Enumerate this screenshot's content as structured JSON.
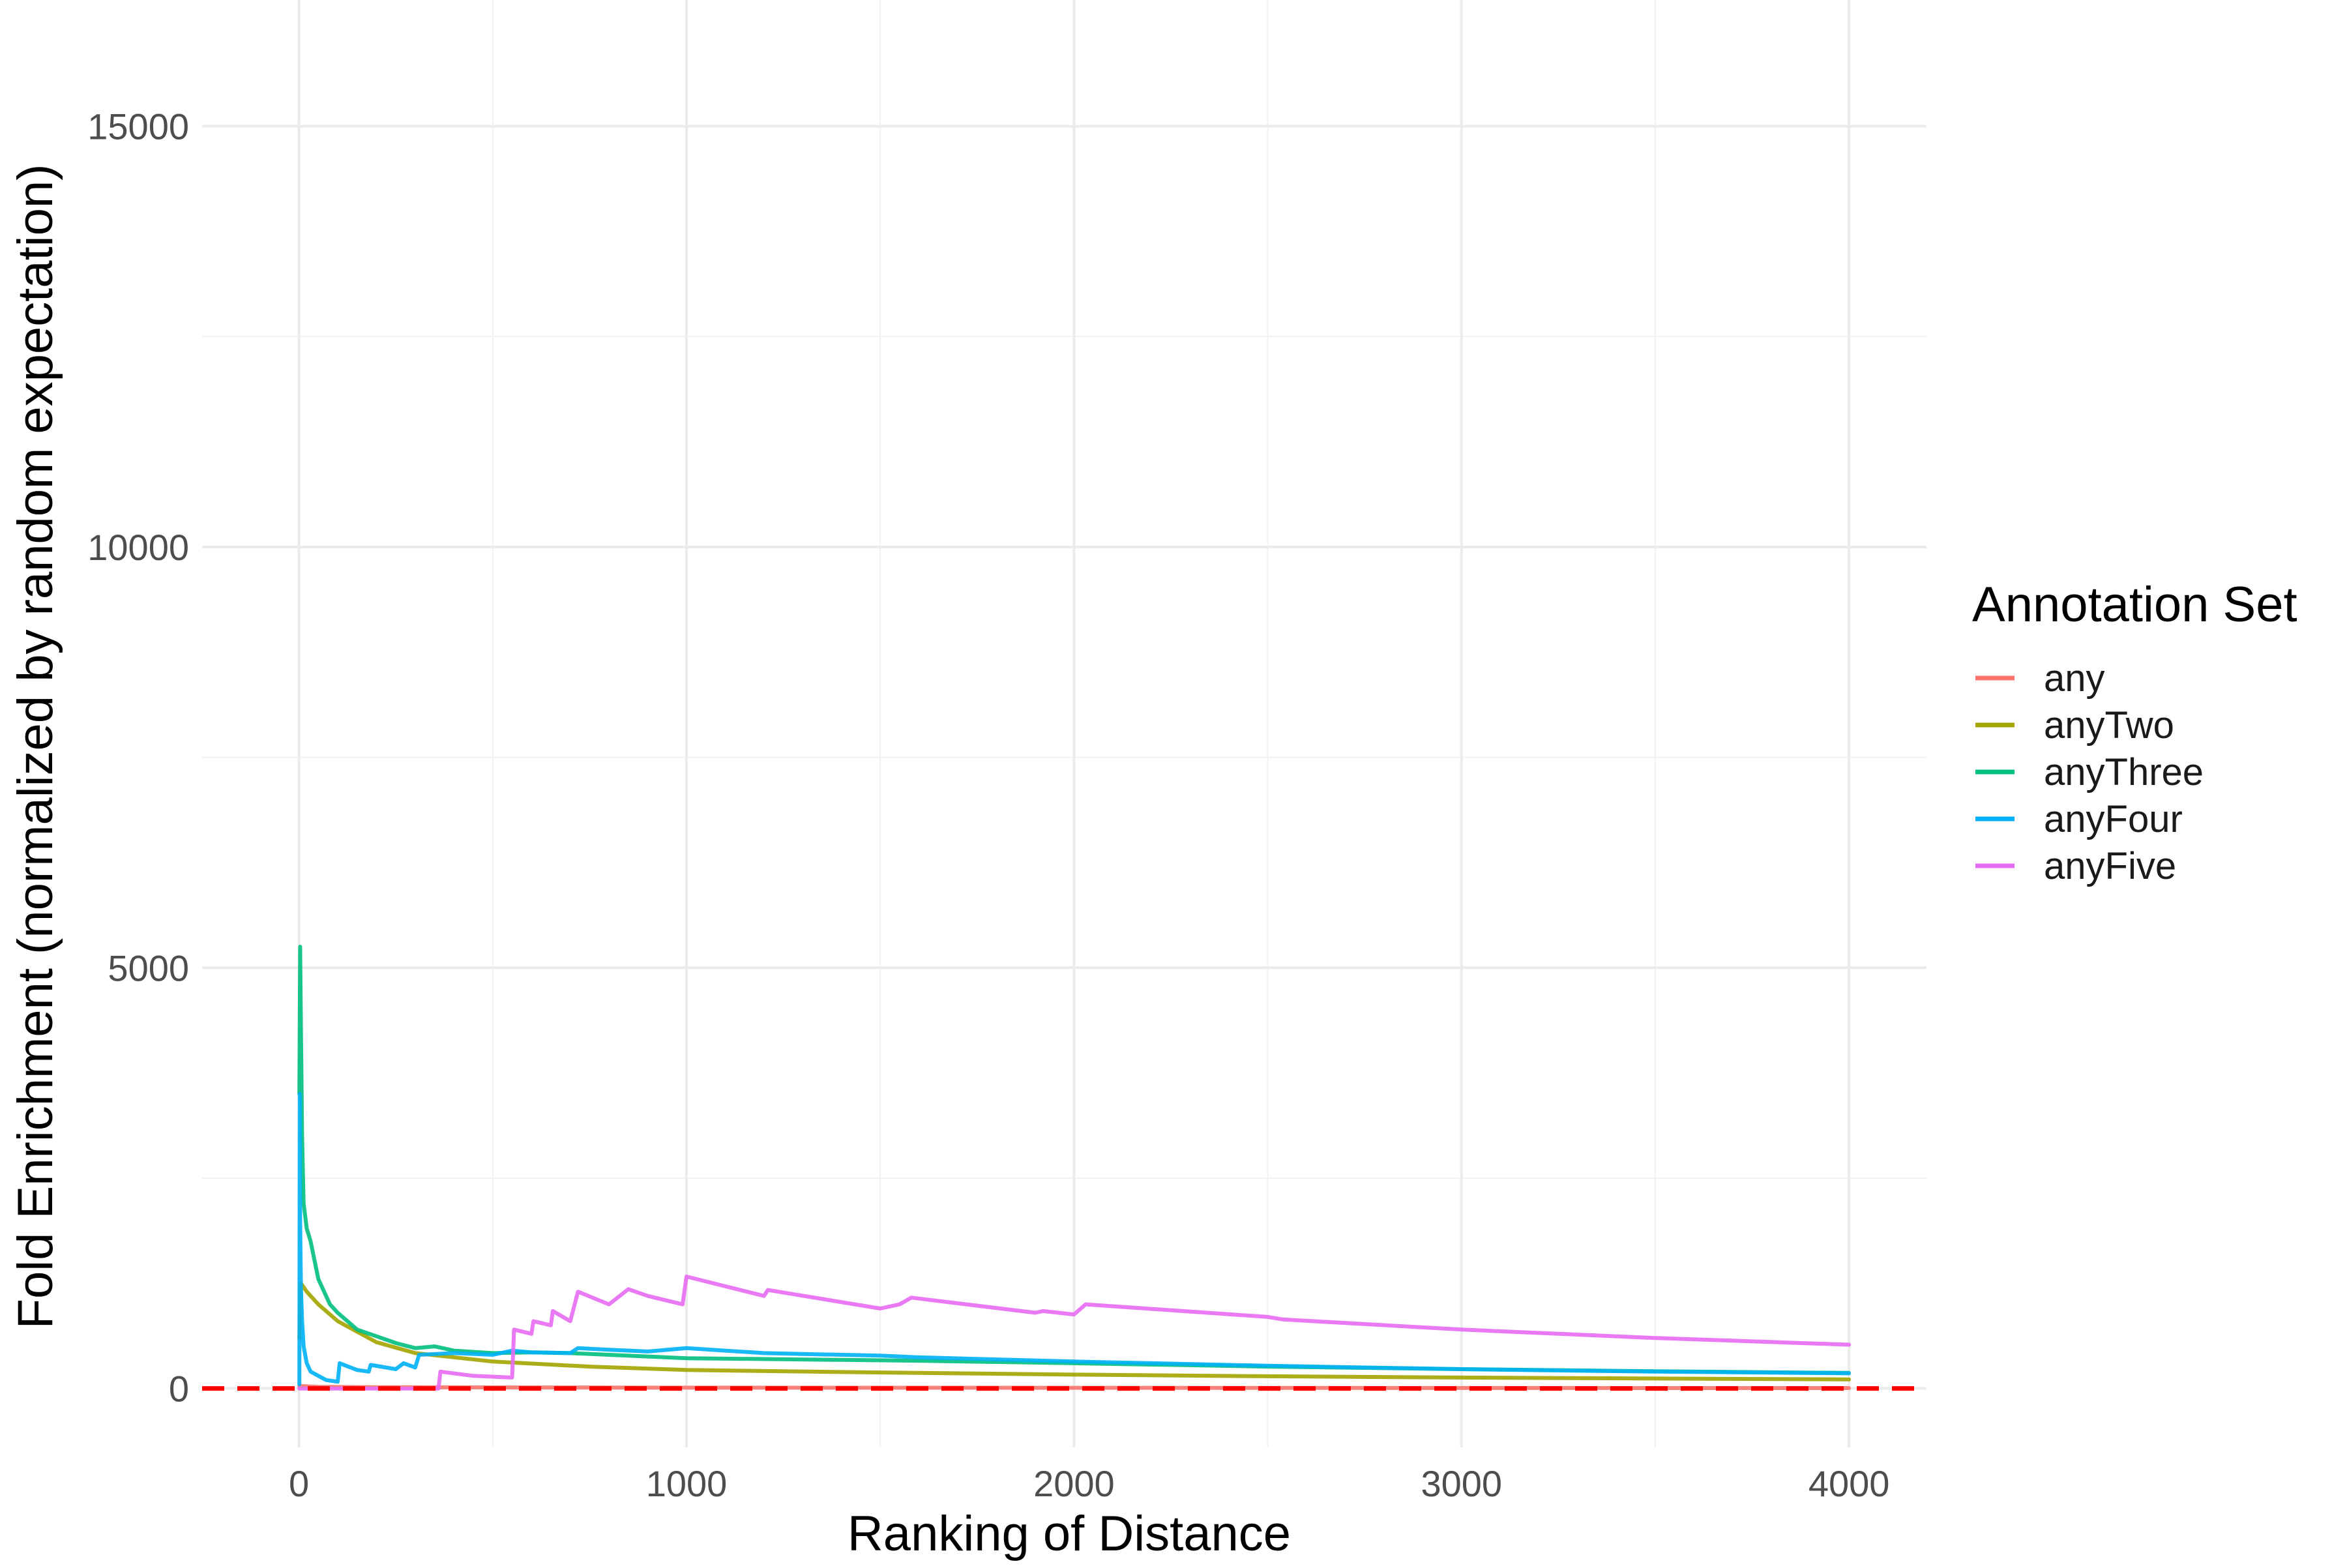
{
  "chart_data": {
    "type": "line",
    "title": "",
    "xlabel": "Ranking of Distance",
    "ylabel": "Fold Enrichment (normalized by random expectation)",
    "xlim": [
      -250,
      4200
    ],
    "ylim": [
      -700,
      16500
    ],
    "x_ticks": [
      0,
      1000,
      2000,
      3000,
      4000
    ],
    "x_tick_labels": [
      "0",
      "1000",
      "2000",
      "3000",
      "4000"
    ],
    "y_ticks": [
      0,
      5000,
      10000,
      15000
    ],
    "y_tick_labels": [
      "0",
      "5000",
      "10000",
      "15000"
    ],
    "grid": true,
    "legend": {
      "title": "Annotation Set",
      "position": "right"
    },
    "reference_line": {
      "y": 0,
      "style": "dashed",
      "color": "#ff0000"
    },
    "series": [
      {
        "name": "any",
        "color": "#F8766D",
        "x": [
          1,
          50,
          200,
          1000,
          2000,
          3000,
          4000
        ],
        "y": [
          30,
          20,
          15,
          10,
          8,
          6,
          5
        ]
      },
      {
        "name": "anyTwo",
        "color": "#A3A500",
        "x": [
          1,
          5,
          20,
          50,
          100,
          200,
          300,
          500,
          750,
          1000,
          1500,
          2000,
          2500,
          3000,
          3500,
          4000
        ],
        "y": [
          600,
          1250,
          1150,
          1000,
          800,
          550,
          420,
          320,
          260,
          220,
          190,
          165,
          145,
          130,
          118,
          108
        ]
      },
      {
        "name": "anyThree",
        "color": "#00BF7D",
        "x": [
          1,
          3,
          5,
          8,
          12,
          20,
          30,
          50,
          80,
          100,
          150,
          200,
          250,
          300,
          350,
          400,
          500,
          600,
          700,
          800,
          900,
          1000,
          1200,
          1400,
          1600,
          2000,
          2500,
          3000,
          3500,
          4000
        ],
        "y": [
          3500,
          5250,
          4300,
          3000,
          2200,
          1900,
          1750,
          1300,
          1000,
          900,
          700,
          620,
          540,
          480,
          500,
          450,
          420,
          430,
          420,
          400,
          380,
          360,
          350,
          340,
          330,
          300,
          260,
          230,
          205,
          185
        ]
      },
      {
        "name": "anyFour",
        "color": "#00B0F6",
        "x": [
          1,
          2,
          3,
          5,
          8,
          12,
          20,
          30,
          50,
          70,
          100,
          105,
          150,
          180,
          185,
          250,
          270,
          300,
          310,
          400,
          500,
          550,
          600,
          700,
          720,
          800,
          900,
          1000,
          1100,
          1200,
          1300,
          1500,
          1600,
          2000,
          2100,
          2500,
          3000,
          3500,
          4000
        ],
        "y": [
          50,
          3500,
          2000,
          1200,
          800,
          500,
          300,
          200,
          150,
          100,
          80,
          300,
          220,
          200,
          280,
          230,
          300,
          250,
          400,
          420,
          400,
          450,
          430,
          420,
          480,
          460,
          440,
          480,
          450,
          420,
          410,
          390,
          370,
          320,
          310,
          270,
          230,
          200,
          180
        ]
      },
      {
        "name": "anyFive",
        "color": "#E76BF3",
        "x": [
          1,
          360,
          365,
          450,
          550,
          555,
          600,
          605,
          650,
          655,
          700,
          720,
          800,
          850,
          900,
          990,
          1000,
          1200,
          1210,
          1500,
          1550,
          1580,
          1900,
          1920,
          2000,
          2030,
          2500,
          2540,
          3000,
          3500,
          4000
        ],
        "y": [
          0,
          0,
          200,
          150,
          130,
          700,
          650,
          800,
          750,
          920,
          800,
          1150,
          1000,
          1180,
          1100,
          1000,
          1330,
          1100,
          1170,
          950,
          1000,
          1080,
          900,
          920,
          880,
          1000,
          850,
          820,
          700,
          600,
          520
        ]
      }
    ]
  }
}
